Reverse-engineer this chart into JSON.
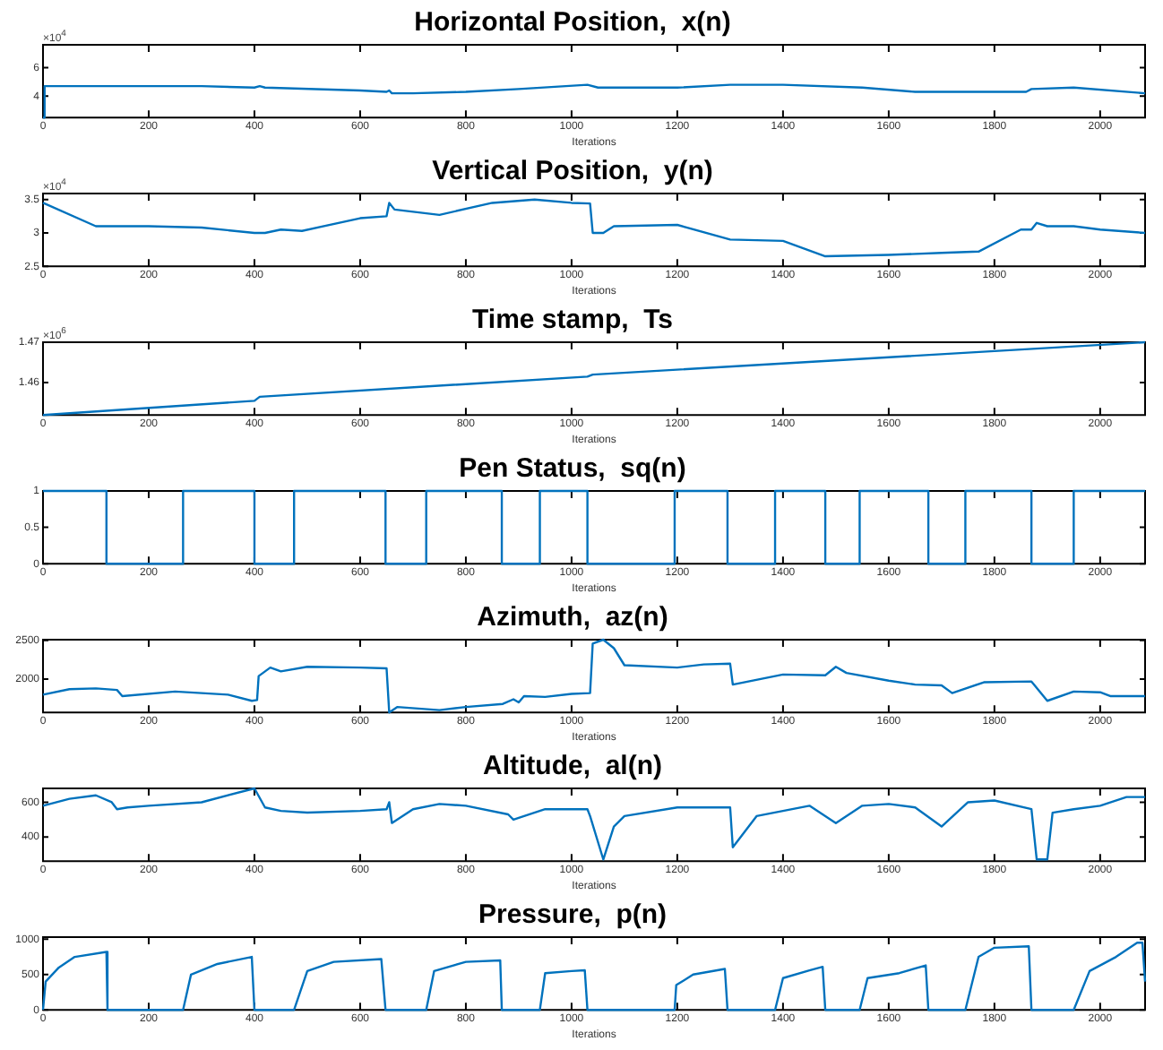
{
  "chart_data": [
    {
      "type": "line",
      "title": "Horizontal Position,  x(n)",
      "xlabel": "Iterations",
      "annotations": [
        "×10$^{4}$"
      ],
      "xlim": [
        0,
        2085
      ],
      "xticks": [
        0,
        200,
        400,
        600,
        800,
        1000,
        1200,
        1400,
        1600,
        1800,
        2000
      ],
      "ylim": [
        2.5,
        7.6
      ],
      "yticks": [
        4,
        6
      ],
      "grid": false,
      "legend": false,
      "color": "#0072bd",
      "x": [
        0,
        3,
        100,
        300,
        400,
        410,
        420,
        600,
        650,
        655,
        660,
        700,
        800,
        900,
        1030,
        1050,
        1200,
        1300,
        1400,
        1550,
        1650,
        1860,
        1870,
        1950,
        2085
      ],
      "values": [
        2.5,
        4.7,
        4.7,
        4.7,
        4.6,
        4.7,
        4.6,
        4.4,
        4.3,
        4.4,
        4.2,
        4.2,
        4.3,
        4.5,
        4.8,
        4.6,
        4.6,
        4.8,
        4.8,
        4.6,
        4.3,
        4.3,
        4.5,
        4.6,
        4.2
      ]
    },
    {
      "type": "line",
      "title": "Vertical Position,  y(n)",
      "xlabel": "Iterations",
      "annotations": [
        "×10$^{4}$"
      ],
      "xlim": [
        0,
        2085
      ],
      "xticks": [
        0,
        200,
        400,
        600,
        800,
        1000,
        1200,
        1400,
        1600,
        1800,
        2000
      ],
      "ylim": [
        2.5,
        3.59
      ],
      "yticks": [
        2.5,
        3,
        3.5
      ],
      "grid": false,
      "legend": false,
      "color": "#0072bd",
      "x": [
        0,
        100,
        200,
        300,
        400,
        420,
        450,
        490,
        600,
        650,
        655,
        665,
        750,
        850,
        930,
        1000,
        1035,
        1040,
        1060,
        1080,
        1200,
        1300,
        1400,
        1480,
        1600,
        1700,
        1770,
        1850,
        1870,
        1880,
        1900,
        1950,
        2000,
        2085
      ],
      "values": [
        3.45,
        3.1,
        3.1,
        3.08,
        3.0,
        3.0,
        3.05,
        3.03,
        3.22,
        3.25,
        3.45,
        3.35,
        3.27,
        3.45,
        3.5,
        3.45,
        3.44,
        3.0,
        3.0,
        3.1,
        3.12,
        2.9,
        2.88,
        2.65,
        2.67,
        2.7,
        2.72,
        3.05,
        3.05,
        3.15,
        3.1,
        3.1,
        3.05,
        3.0
      ]
    },
    {
      "type": "line",
      "title": "Time stamp,  Ts",
      "xlabel": "Iterations",
      "annotations": [
        "×10$^{6}$"
      ],
      "xlim": [
        0,
        2085
      ],
      "xticks": [
        0,
        200,
        400,
        600,
        800,
        1000,
        1200,
        1400,
        1600,
        1800,
        2000
      ],
      "ylim": [
        1.452,
        1.47
      ],
      "yticks": [
        1.46,
        1.47
      ],
      "grid": false,
      "legend": false,
      "color": "#0072bd",
      "x": [
        0,
        400,
        410,
        1030,
        1040,
        2085
      ],
      "values": [
        1.452,
        1.4555,
        1.4565,
        1.4615,
        1.462,
        1.47
      ]
    },
    {
      "type": "line",
      "title": "Pen Status,  sq(n)",
      "xlabel": "Iterations",
      "xlim": [
        0,
        2085
      ],
      "xticks": [
        0,
        200,
        400,
        600,
        800,
        1000,
        1200,
        1400,
        1600,
        1800,
        2000
      ],
      "ylim": [
        0,
        1
      ],
      "yticks": [
        0,
        0.5,
        1
      ],
      "grid": false,
      "legend": false,
      "color": "#0072bd",
      "x": [
        0,
        120,
        120,
        265,
        265,
        400,
        400,
        475,
        475,
        648,
        648,
        725,
        725,
        868,
        868,
        940,
        940,
        1030,
        1030,
        1195,
        1195,
        1295,
        1295,
        1385,
        1385,
        1480,
        1480,
        1545,
        1545,
        1675,
        1675,
        1745,
        1745,
        1870,
        1870,
        1950,
        1950,
        2085
      ],
      "values": [
        1,
        1,
        0,
        0,
        1,
        1,
        0,
        0,
        1,
        1,
        0,
        0,
        1,
        1,
        0,
        0,
        1,
        1,
        0,
        0,
        1,
        1,
        0,
        0,
        1,
        1,
        0,
        0,
        1,
        1,
        0,
        0,
        1,
        1,
        0,
        0,
        1,
        1
      ]
    },
    {
      "type": "line",
      "title": "Azimuth,  az(n)",
      "xlabel": "Iterations",
      "xlim": [
        0,
        2085
      ],
      "xticks": [
        0,
        200,
        400,
        600,
        800,
        1000,
        1200,
        1400,
        1600,
        1800,
        2000
      ],
      "ylim": [
        1570,
        2510
      ],
      "yticks": [
        2000,
        2500
      ],
      "grid": false,
      "legend": false,
      "color": "#0072bd",
      "x": [
        0,
        50,
        100,
        140,
        150,
        250,
        300,
        350,
        395,
        405,
        408,
        430,
        450,
        500,
        600,
        650,
        655,
        670,
        750,
        800,
        870,
        890,
        900,
        910,
        950,
        1000,
        1035,
        1040,
        1060,
        1080,
        1100,
        1200,
        1250,
        1300,
        1305,
        1400,
        1480,
        1500,
        1520,
        1600,
        1650,
        1700,
        1720,
        1780,
        1870,
        1900,
        1950,
        2000,
        2020,
        2085
      ],
      "values": [
        1800,
        1870,
        1880,
        1860,
        1780,
        1840,
        1820,
        1800,
        1720,
        1730,
        2040,
        2150,
        2100,
        2160,
        2150,
        2140,
        1570,
        1640,
        1600,
        1640,
        1680,
        1740,
        1700,
        1780,
        1770,
        1810,
        1820,
        2460,
        2510,
        2400,
        2180,
        2150,
        2190,
        2200,
        1930,
        2060,
        2050,
        2160,
        2080,
        1980,
        1930,
        1920,
        1820,
        1960,
        1970,
        1720,
        1840,
        1830,
        1780,
        1780
      ]
    },
    {
      "type": "line",
      "title": "Altitude,  al(n)",
      "xlabel": "Iterations",
      "xlim": [
        0,
        2085
      ],
      "xticks": [
        0,
        200,
        400,
        600,
        800,
        1000,
        1200,
        1400,
        1600,
        1800,
        2000
      ],
      "ylim": [
        260,
        680
      ],
      "yticks": [
        400,
        600
      ],
      "grid": false,
      "legend": false,
      "color": "#0072bd",
      "x": [
        0,
        50,
        100,
        130,
        140,
        160,
        200,
        300,
        400,
        420,
        450,
        500,
        600,
        650,
        655,
        660,
        700,
        750,
        800,
        880,
        890,
        900,
        950,
        1030,
        1035,
        1060,
        1080,
        1100,
        1200,
        1300,
        1305,
        1350,
        1400,
        1450,
        1500,
        1550,
        1600,
        1650,
        1700,
        1750,
        1800,
        1870,
        1880,
        1900,
        1910,
        1950,
        2000,
        2050,
        2085
      ],
      "values": [
        580,
        620,
        640,
        600,
        560,
        570,
        580,
        600,
        680,
        570,
        550,
        540,
        550,
        560,
        600,
        480,
        560,
        590,
        580,
        530,
        500,
        510,
        560,
        560,
        520,
        270,
        460,
        520,
        570,
        570,
        340,
        520,
        550,
        580,
        480,
        580,
        590,
        570,
        460,
        600,
        610,
        560,
        270,
        270,
        540,
        560,
        580,
        630,
        630
      ]
    },
    {
      "type": "line",
      "title": "Pressure,  p(n)",
      "xlabel": "Iterations",
      "xlim": [
        0,
        2085
      ],
      "xticks": [
        0,
        200,
        400,
        600,
        800,
        1000,
        1200,
        1400,
        1600,
        1800,
        2000
      ],
      "ylim": [
        0,
        1030
      ],
      "yticks": [
        0,
        500,
        1000
      ],
      "grid": false,
      "legend": false,
      "color": "#0072bd",
      "x": [
        0,
        5,
        30,
        60,
        120,
        122,
        265,
        280,
        330,
        395,
        400,
        475,
        500,
        550,
        640,
        648,
        725,
        740,
        800,
        865,
        868,
        940,
        950,
        1000,
        1025,
        1030,
        1195,
        1198,
        1230,
        1290,
        1295,
        1385,
        1400,
        1450,
        1475,
        1480,
        1545,
        1560,
        1620,
        1670,
        1675,
        1745,
        1770,
        1800,
        1865,
        1870,
        1950,
        1980,
        2030,
        2070,
        2080,
        2085
      ],
      "values": [
        0,
        400,
        600,
        750,
        820,
        0,
        0,
        500,
        650,
        750,
        0,
        0,
        550,
        680,
        720,
        0,
        0,
        550,
        680,
        700,
        0,
        0,
        520,
        550,
        560,
        0,
        0,
        350,
        500,
        580,
        0,
        0,
        450,
        560,
        610,
        0,
        0,
        450,
        520,
        630,
        0,
        0,
        750,
        880,
        900,
        0,
        0,
        550,
        750,
        950,
        950,
        400
      ]
    }
  ]
}
